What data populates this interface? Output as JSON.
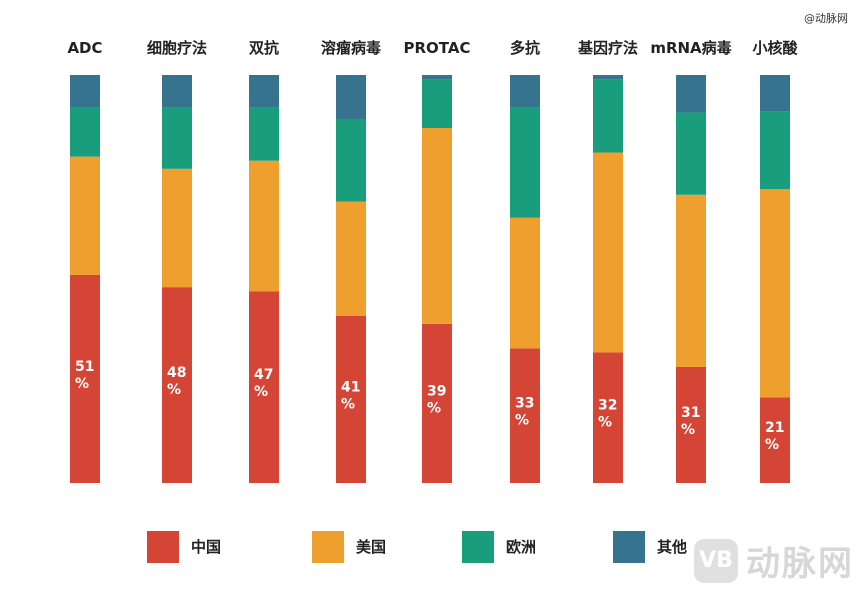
{
  "watermark": {
    "top_text": "@动脉网",
    "logo_mark": "VB",
    "logo_text": "动脉网"
  },
  "chart_data": {
    "type": "bar",
    "stacked": true,
    "normalized": true,
    "title": "",
    "xlabel": "",
    "ylabel": "",
    "ylim": [
      0,
      100
    ],
    "categories": [
      "ADC",
      "细胞疗法",
      "双抗",
      "溶瘤病毒",
      "PROTAC",
      "多抗",
      "基因疗法",
      "mRNA病毒",
      "小核酸"
    ],
    "series": [
      {
        "name": "中国",
        "color": "#d44535",
        "values": [
          51,
          48,
          47,
          41,
          39,
          33,
          32,
          31,
          21
        ]
      },
      {
        "name": "美国",
        "color": "#ef9f2e",
        "values": [
          29,
          29,
          32,
          28,
          48,
          32,
          49,
          46,
          51
        ]
      },
      {
        "name": "欧洲",
        "color": "#1a9d7d",
        "values": [
          12,
          15,
          13,
          20,
          12,
          27,
          18,
          22,
          19
        ]
      },
      {
        "name": "其他",
        "color": "#36738f",
        "values": [
          8,
          8,
          8,
          11,
          1,
          8,
          1,
          10,
          9
        ]
      }
    ],
    "data_labels": [
      "51\n%",
      "48\n%",
      "47\n%",
      "41\n%",
      "39\n%",
      "33\n%",
      "32\n%",
      "31\n%",
      "21\n%"
    ],
    "legend_position": "bottom"
  }
}
